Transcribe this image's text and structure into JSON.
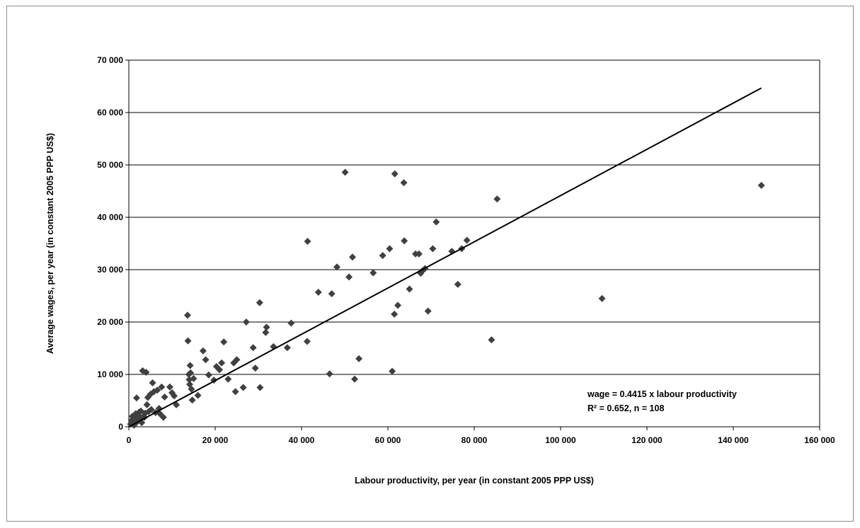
{
  "chart_data": {
    "type": "scatter",
    "title": "",
    "xlabel": "Labour productivity, per year (in constant 2005 PPP US$)",
    "ylabel": "Average wages, per year (in constant 2005 PPP US$)",
    "xlim": [
      0,
      160000
    ],
    "ylim": [
      0,
      70000
    ],
    "x_ticks": [
      0,
      20000,
      40000,
      60000,
      80000,
      100000,
      120000,
      140000,
      160000
    ],
    "y_ticks": [
      0,
      10000,
      20000,
      30000,
      40000,
      50000,
      60000,
      70000
    ],
    "x_tick_labels": [
      "0",
      "20 000",
      "40 000",
      "60 000",
      "80 000",
      "100 000",
      "120 000",
      "140 000",
      "160 000"
    ],
    "y_tick_labels": [
      "0",
      "10 000",
      "20 000",
      "30 000",
      "40 000",
      "50 000",
      "60 000",
      "70 000"
    ],
    "grid": "horizontal",
    "marker_color": "#404040",
    "line_color": "#000000",
    "annotations": [
      "wage = 0.4415 x labour productivity",
      "R² = 0.652, n = 108"
    ],
    "fit_line": {
      "slope": 0.4415,
      "intercept": 0,
      "x_range": [
        0,
        146500
      ]
    },
    "points": [
      [
        400,
        500
      ],
      [
        600,
        1200
      ],
      [
        800,
        2000
      ],
      [
        1000,
        800
      ],
      [
        1200,
        300
      ],
      [
        1400,
        1600
      ],
      [
        1600,
        2500
      ],
      [
        1800,
        5500
      ],
      [
        2000,
        1000
      ],
      [
        2200,
        2200
      ],
      [
        2400,
        2800
      ],
      [
        2600,
        1500
      ],
      [
        2800,
        3000
      ],
      [
        3000,
        800
      ],
      [
        3200,
        10700
      ],
      [
        3400,
        2000
      ],
      [
        3600,
        1800
      ],
      [
        3800,
        2600
      ],
      [
        4000,
        10400
      ],
      [
        4200,
        4200
      ],
      [
        4400,
        5600
      ],
      [
        4600,
        2900
      ],
      [
        5000,
        6200
      ],
      [
        5200,
        3300
      ],
      [
        5500,
        8400
      ],
      [
        5800,
        6700
      ],
      [
        6200,
        2700
      ],
      [
        6600,
        7000
      ],
      [
        7000,
        3500
      ],
      [
        7200,
        2500
      ],
      [
        7600,
        7600
      ],
      [
        8000,
        1800
      ],
      [
        8300,
        5700
      ],
      [
        9500,
        7600
      ],
      [
        10000,
        6500
      ],
      [
        10500,
        5900
      ],
      [
        11000,
        4200
      ],
      [
        13600,
        21300
      ],
      [
        13700,
        16400
      ],
      [
        13900,
        10000
      ],
      [
        14000,
        9000
      ],
      [
        14100,
        8100
      ],
      [
        14200,
        11700
      ],
      [
        14300,
        10300
      ],
      [
        14500,
        7200
      ],
      [
        14700,
        5100
      ],
      [
        15000,
        9200
      ],
      [
        16000,
        6000
      ],
      [
        17200,
        14500
      ],
      [
        17800,
        12800
      ],
      [
        18500,
        9900
      ],
      [
        19700,
        8900
      ],
      [
        20300,
        11500
      ],
      [
        21000,
        10900
      ],
      [
        21500,
        12200
      ],
      [
        22000,
        16200
      ],
      [
        23000,
        9100
      ],
      [
        24300,
        12200
      ],
      [
        24700,
        6700
      ],
      [
        25000,
        12800
      ],
      [
        26500,
        7500
      ],
      [
        27200,
        20000
      ],
      [
        28800,
        15100
      ],
      [
        29300,
        11200
      ],
      [
        30300,
        23700
      ],
      [
        30400,
        7500
      ],
      [
        31700,
        18000
      ],
      [
        31900,
        19000
      ],
      [
        33500,
        15300
      ],
      [
        36700,
        15100
      ],
      [
        37600,
        19800
      ],
      [
        41300,
        16300
      ],
      [
        41400,
        35400
      ],
      [
        43900,
        25700
      ],
      [
        46500,
        10100
      ],
      [
        47000,
        25400
      ],
      [
        48200,
        30500
      ],
      [
        50100,
        48600
      ],
      [
        51000,
        28600
      ],
      [
        51800,
        32400
      ],
      [
        52300,
        9100
      ],
      [
        53300,
        13000
      ],
      [
        56600,
        29400
      ],
      [
        58800,
        32700
      ],
      [
        60400,
        34000
      ],
      [
        61000,
        10600
      ],
      [
        61500,
        21500
      ],
      [
        61600,
        48300
      ],
      [
        62300,
        23200
      ],
      [
        63700,
        46600
      ],
      [
        63800,
        35500
      ],
      [
        65000,
        26300
      ],
      [
        66400,
        33000
      ],
      [
        67200,
        33000
      ],
      [
        67600,
        29300
      ],
      [
        68000,
        29800
      ],
      [
        68600,
        30200
      ],
      [
        69300,
        22100
      ],
      [
        70400,
        34000
      ],
      [
        71200,
        39100
      ],
      [
        74800,
        33500
      ],
      [
        76200,
        27200
      ],
      [
        77100,
        34000
      ],
      [
        78300,
        35600
      ],
      [
        84000,
        16600
      ],
      [
        85300,
        43500
      ],
      [
        109600,
        24500
      ],
      [
        146500,
        46100
      ]
    ]
  }
}
